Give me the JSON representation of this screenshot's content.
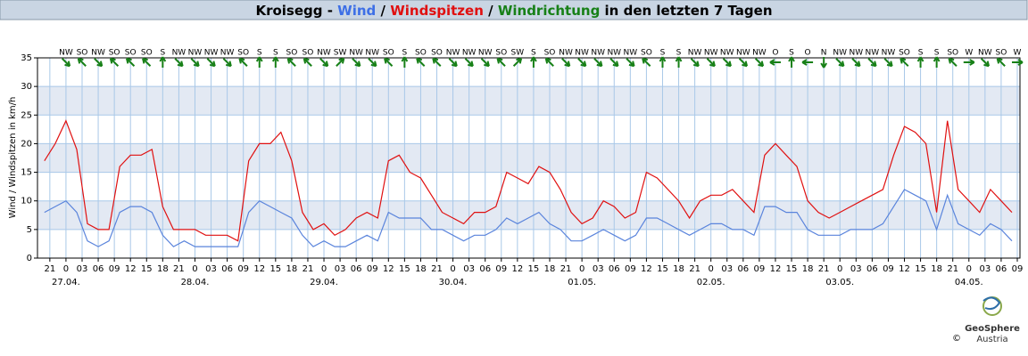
{
  "chart_data": {
    "type": "line",
    "title_parts": [
      {
        "text": "Kroisegg - ",
        "color": "#000000"
      },
      {
        "text": "Wind",
        "color": "#3d6fe6"
      },
      {
        "text": " / ",
        "color": "#000000"
      },
      {
        "text": "Windspitzen",
        "color": "#e01010"
      },
      {
        "text": " / ",
        "color": "#000000"
      },
      {
        "text": "Windrichtung",
        "color": "#178017"
      },
      {
        "text": " in den letzten 7 Tagen",
        "color": "#000000"
      }
    ],
    "y_label": "Wind / Windspitzen in km/h",
    "xlim": [
      -5.3,
      177.5
    ],
    "ylim": [
      0,
      35
    ],
    "yticks": [
      0,
      5,
      10,
      15,
      20,
      25,
      30,
      35
    ],
    "grid": true,
    "bands": true,
    "xticks": [
      {
        "value": -3,
        "label": "21"
      },
      {
        "value": 0,
        "label": "0"
      },
      {
        "value": 3,
        "label": "03"
      },
      {
        "value": 6,
        "label": "06"
      },
      {
        "value": 9,
        "label": "09"
      },
      {
        "value": 12,
        "label": "12"
      },
      {
        "value": 15,
        "label": "15"
      },
      {
        "value": 18,
        "label": "18"
      },
      {
        "value": 21,
        "label": "21"
      },
      {
        "value": 24,
        "label": "0"
      },
      {
        "value": 27,
        "label": "03"
      },
      {
        "value": 30,
        "label": "06"
      },
      {
        "value": 33,
        "label": "09"
      },
      {
        "value": 36,
        "label": "12"
      },
      {
        "value": 39,
        "label": "15"
      },
      {
        "value": 42,
        "label": "18"
      },
      {
        "value": 45,
        "label": "21"
      },
      {
        "value": 48,
        "label": "0"
      },
      {
        "value": 51,
        "label": "03"
      },
      {
        "value": 54,
        "label": "06"
      },
      {
        "value": 57,
        "label": "09"
      },
      {
        "value": 60,
        "label": "12"
      },
      {
        "value": 63,
        "label": "15"
      },
      {
        "value": 66,
        "label": "18"
      },
      {
        "value": 69,
        "label": "21"
      },
      {
        "value": 72,
        "label": "0"
      },
      {
        "value": 75,
        "label": "03"
      },
      {
        "value": 78,
        "label": "06"
      },
      {
        "value": 81,
        "label": "09"
      },
      {
        "value": 84,
        "label": "12"
      },
      {
        "value": 87,
        "label": "15"
      },
      {
        "value": 90,
        "label": "18"
      },
      {
        "value": 93,
        "label": "21"
      },
      {
        "value": 96,
        "label": "0"
      },
      {
        "value": 99,
        "label": "03"
      },
      {
        "value": 102,
        "label": "06"
      },
      {
        "value": 105,
        "label": "09"
      },
      {
        "value": 108,
        "label": "12"
      },
      {
        "value": 111,
        "label": "15"
      },
      {
        "value": 114,
        "label": "18"
      },
      {
        "value": 117,
        "label": "21"
      },
      {
        "value": 120,
        "label": "0"
      },
      {
        "value": 123,
        "label": "03"
      },
      {
        "value": 126,
        "label": "06"
      },
      {
        "value": 129,
        "label": "09"
      },
      {
        "value": 132,
        "label": "12"
      },
      {
        "value": 135,
        "label": "15"
      },
      {
        "value": 138,
        "label": "18"
      },
      {
        "value": 141,
        "label": "21"
      },
      {
        "value": 144,
        "label": "0"
      },
      {
        "value": 147,
        "label": "03"
      },
      {
        "value": 150,
        "label": "06"
      },
      {
        "value": 153,
        "label": "09"
      },
      {
        "value": 156,
        "label": "12"
      },
      {
        "value": 159,
        "label": "15"
      },
      {
        "value": 162,
        "label": "18"
      },
      {
        "value": 165,
        "label": "21"
      },
      {
        "value": 168,
        "label": "0"
      },
      {
        "value": 171,
        "label": "03"
      },
      {
        "value": 174,
        "label": "06"
      },
      {
        "value": 177,
        "label": "09"
      }
    ],
    "date_labels": [
      {
        "value": 0,
        "label": "27.04."
      },
      {
        "value": 24,
        "label": "28.04."
      },
      {
        "value": 48,
        "label": "29.04."
      },
      {
        "value": 72,
        "label": "30.04."
      },
      {
        "value": 96,
        "label": "01.05."
      },
      {
        "value": 120,
        "label": "02.05."
      },
      {
        "value": 144,
        "label": "03.05."
      },
      {
        "value": 168,
        "label": "04.05."
      }
    ],
    "directions": {
      "color": "#178017",
      "x": [
        0,
        3,
        6,
        9,
        12,
        15,
        18,
        21,
        24,
        27,
        30,
        33,
        36,
        39,
        42,
        45,
        48,
        51,
        54,
        57,
        60,
        63,
        66,
        69,
        72,
        75,
        78,
        81,
        84,
        87,
        90,
        93,
        96,
        99,
        102,
        105,
        108,
        111,
        114,
        117,
        120,
        123,
        126,
        129,
        132,
        135,
        138,
        141,
        144,
        147,
        150,
        153,
        156,
        159,
        162,
        165,
        168,
        171,
        174,
        177
      ],
      "labels": [
        "NW",
        "SO",
        "NW",
        "SO",
        "SO",
        "SO",
        "S",
        "NW",
        "NW",
        "NW",
        "NW",
        "SO",
        "S",
        "S",
        "SO",
        "SO",
        "NW",
        "SW",
        "NW",
        "NW",
        "SO",
        "S",
        "SO",
        "SO",
        "NW",
        "NW",
        "NW",
        "SO",
        "SW",
        "S",
        "SO",
        "NW",
        "NW",
        "NW",
        "NW",
        "NW",
        "SO",
        "S",
        "S",
        "NW",
        "NW",
        "NW",
        "NW",
        "NW",
        "O",
        "S",
        "O",
        "N",
        "NW",
        "NW",
        "NW",
        "NW",
        "SO",
        "S",
        "S",
        "SO",
        "W",
        "NW",
        "SO",
        "W"
      ]
    },
    "x": [
      -4,
      -2,
      0,
      2,
      4,
      6,
      8,
      10,
      12,
      14,
      16,
      18,
      20,
      22,
      24,
      26,
      28,
      30,
      32,
      34,
      36,
      38,
      40,
      42,
      44,
      46,
      48,
      50,
      52,
      54,
      56,
      58,
      60,
      62,
      64,
      66,
      68,
      70,
      72,
      74,
      76,
      78,
      80,
      82,
      84,
      86,
      88,
      90,
      92,
      94,
      96,
      98,
      100,
      102,
      104,
      106,
      108,
      110,
      112,
      114,
      116,
      118,
      120,
      122,
      124,
      126,
      128,
      130,
      132,
      134,
      136,
      138,
      140,
      142,
      144,
      146,
      148,
      150,
      152,
      154,
      156,
      158,
      160,
      162,
      164,
      166,
      168,
      170,
      172,
      174,
      176
    ],
    "series": [
      {
        "name": "Windspitzen",
        "color": "#e01010",
        "values": [
          17,
          20,
          24,
          19,
          6,
          5,
          5,
          16,
          18,
          18,
          19,
          9,
          5,
          5,
          5,
          4,
          4,
          4,
          3,
          17,
          20,
          20,
          22,
          17,
          8,
          5,
          6,
          4,
          5,
          7,
          8,
          7,
          17,
          18,
          15,
          14,
          11,
          8,
          7,
          6,
          8,
          8,
          9,
          15,
          14,
          13,
          16,
          15,
          12,
          8,
          6,
          7,
          10,
          9,
          7,
          8,
          15,
          14,
          12,
          10,
          7,
          10,
          11,
          11,
          12,
          10,
          8,
          18,
          20,
          18,
          16,
          10,
          8,
          7,
          8,
          9,
          10,
          11,
          12,
          18,
          23,
          22,
          20,
          8,
          24,
          12,
          10,
          8,
          12,
          10,
          8
        ]
      },
      {
        "name": "Wind",
        "color": "#5a84dc",
        "values": [
          8,
          9,
          10,
          8,
          3,
          2,
          3,
          8,
          9,
          9,
          8,
          4,
          2,
          3,
          2,
          2,
          2,
          2,
          2,
          8,
          10,
          9,
          8,
          7,
          4,
          2,
          3,
          2,
          2,
          3,
          4,
          3,
          8,
          7,
          7,
          7,
          5,
          5,
          4,
          3,
          4,
          4,
          5,
          7,
          6,
          7,
          8,
          6,
          5,
          3,
          3,
          4,
          5,
          4,
          3,
          4,
          7,
          7,
          6,
          5,
          4,
          5,
          6,
          6,
          5,
          5,
          4,
          9,
          9,
          8,
          8,
          5,
          4,
          4,
          4,
          5,
          5,
          5,
          6,
          9,
          12,
          11,
          10,
          5,
          11,
          6,
          5,
          4,
          6,
          5,
          3
        ]
      }
    ]
  },
  "logo": {
    "name": "GeoSphere",
    "copyright": "©",
    "country": "Austria"
  }
}
